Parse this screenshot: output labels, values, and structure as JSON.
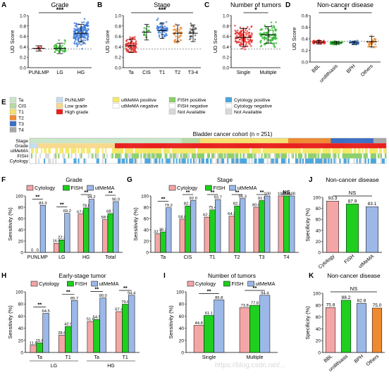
{
  "colors": {
    "cytology": "#f4a6a6",
    "fish": "#1fcf1f",
    "utmema": "#9bb8e8",
    "ta": "#c9e6c9",
    "cis": "#b8d9a0",
    "t1": "#f5e06e",
    "t2": "#f08a30",
    "t3": "#3a6fc6",
    "t4": "#a8a8a8",
    "punlmp": "#c6dcef",
    "lowgrade": "#f7d98c",
    "highgrade": "#e8201e",
    "pos_utmema": "#f5e96b",
    "pos_fish": "#8ccf6a",
    "pos_cyto": "#4aa6e0",
    "neg": "#ffffff",
    "na": "#d9d9d9"
  },
  "legend_top": {
    "cytology": "Cytology",
    "fish": "FISH",
    "utmema": "utMeMA"
  },
  "panels": {
    "A": {
      "letter": "A",
      "title": "Grade",
      "ylabel": "UD Score",
      "sig": "***",
      "categories": [
        "PUNLMP",
        "LG",
        "HG"
      ],
      "means": [
        0.37,
        0.37,
        0.66
      ],
      "ylim": [
        0,
        1.0
      ],
      "yticks": [
        "0.0",
        "0.2",
        "0.4",
        "0.6",
        "0.8",
        "1.0"
      ]
    },
    "B": {
      "letter": "B",
      "title": "Stage",
      "ylabel": "UD Score",
      "sig": "***",
      "categories": [
        "Ta",
        "CIS",
        "T1",
        "T2",
        "T3-4"
      ],
      "means": [
        0.42,
        0.68,
        0.71,
        0.66,
        0.66
      ],
      "ylim": [
        0,
        1.0
      ],
      "yticks": [
        "0.0",
        "0.2",
        "0.4",
        "0.6",
        "0.8",
        "1.0"
      ]
    },
    "C": {
      "letter": "C",
      "title": "Number of tumors",
      "ylabel": "UD Score",
      "sig": "*",
      "categories": [
        "Single",
        "Multiple"
      ],
      "means": [
        0.58,
        0.63
      ],
      "ylim": [
        0,
        1.0
      ],
      "yticks": [
        "0.0",
        "0.2",
        "0.4",
        "0.6",
        "0.8",
        "1.0"
      ]
    },
    "D": {
      "letter": "D",
      "title": "Non-cancer disease",
      "ylabel": "UD Score",
      "sig": "*",
      "categories": [
        "BBL",
        "urolithiasis",
        "BPH",
        "Others"
      ],
      "means": [
        0.34,
        0.33,
        0.33,
        0.35
      ],
      "ylim": [
        0,
        0.8
      ],
      "yticks": [
        "0.0",
        "0.2",
        "0.4",
        "0.6",
        "0.8"
      ]
    },
    "E": {
      "letter": "E",
      "cohort_title": "Bladder cancer cohort (n = 251)",
      "row_labels": [
        "Stage",
        "Grade",
        "utMeMA",
        "FISH",
        "Cytology"
      ],
      "legend_stage": [
        "Ta",
        "CIS",
        "T1",
        "T2",
        "T3",
        "T4"
      ],
      "legend_grade": [
        "PUNLMP",
        "Low grade",
        "High grade"
      ],
      "legend_utmema": [
        "utMeMA positive",
        "utMeMA negative"
      ],
      "legend_fish": [
        "FISH positive",
        "FISH negative",
        "Not Available"
      ],
      "legend_cyto": [
        "Cytology positive",
        "Cytology negative",
        "Not Available"
      ]
    },
    "F": {
      "letter": "F",
      "title": "Grade",
      "ylabel": "Sensitivity (%)",
      "ytickvals": [
        0,
        20,
        40,
        60,
        80,
        100
      ],
      "categories": [
        "PUNLMP",
        "LG",
        "HG",
        "Total"
      ],
      "series": [
        {
          "name": "Cytology",
          "values": [
            0,
            16.0,
            67.8,
            58.0
          ]
        },
        {
          "name": "FISH",
          "values": [
            0,
            22.2,
            78.8,
            68.7
          ]
        },
        {
          "name": "utMeMA",
          "values": [
            83.3,
            69.2,
            94.2,
            90.0
          ]
        }
      ],
      "labels": [
        [
          "0",
          "0",
          "83.3"
        ],
        [
          "16.0",
          "22.2",
          "69.2"
        ],
        [
          "67.8",
          "78.8",
          "94.2"
        ],
        [
          "58.0",
          "68.7",
          "90.0"
        ]
      ],
      "sig": [
        "**",
        "**",
        "**",
        "**"
      ]
    },
    "G": {
      "letter": "G",
      "title": "Stage",
      "ylabel": "Sensitivity (%)",
      "ytickvals": [
        0,
        20,
        40,
        60,
        80,
        100
      ],
      "categories": [
        "Ta",
        "CIS",
        "T1",
        "T2",
        "T3",
        "T4"
      ],
      "series": [
        {
          "name": "Cytology",
          "values": [
            32.7,
            58.8,
            62.3,
            64.2,
            80.0,
            100
          ]
        },
        {
          "name": "FISH",
          "values": [
            36.2,
            82.3,
            75.4,
            82.3,
            91.9,
            100
          ]
        },
        {
          "name": "utMeMA",
          "values": [
            79.2,
            92.0,
            93.7,
            95.3,
            100,
            100
          ]
        }
      ],
      "labels": [
        [
          "32.7",
          "36.2",
          "79.2"
        ],
        [
          "58.8",
          "82.3",
          "92.0"
        ],
        [
          "62.3",
          "75.4",
          "93.7"
        ],
        [
          "64.2",
          "82.3",
          "95.3"
        ],
        [
          "80.0",
          "91.9",
          "100"
        ],
        [
          "100",
          "100",
          "100"
        ]
      ],
      "sig": [
        "**",
        "**",
        "**",
        "**",
        "**",
        "NS"
      ]
    },
    "H": {
      "letter": "H",
      "title": "Early-stage tumor",
      "ylabel": "Sensitivity (%)",
      "ytickvals": [
        0,
        20,
        40,
        60,
        80,
        100
      ],
      "categories": [
        "Ta",
        "T1",
        "Ta",
        "T1"
      ],
      "groups": [
        "LG",
        "HG"
      ],
      "series": [
        {
          "name": "Cytology",
          "values": [
            11.8,
            28.6,
            51.0,
            67.4
          ]
        },
        {
          "name": "FISH",
          "values": [
            15.8,
            42.9,
            54.5,
            79.6
          ]
        },
        {
          "name": "utMeMA",
          "values": [
            64.5,
            85.7,
            90.0,
            94.4
          ]
        }
      ],
      "labels": [
        [
          "11.8",
          "15.8",
          "64.5"
        ],
        [
          "28.6",
          "42.9",
          "85.7"
        ],
        [
          "51.0",
          "54.5",
          "90.0"
        ],
        [
          "67.4",
          "79.6",
          "94.4"
        ]
      ],
      "sig": [
        "**",
        "**",
        "**",
        "**"
      ]
    },
    "I": {
      "letter": "I",
      "title": "Number of tumors",
      "ylabel": "Sensitivity (%)",
      "ytickvals": [
        0,
        20,
        40,
        60,
        80,
        100
      ],
      "categories": [
        "Single",
        "Multiple"
      ],
      "series": [
        {
          "name": "Cytology",
          "values": [
            44.8,
            73.8
          ]
        },
        {
          "name": "FISH",
          "values": [
            61.1,
            77.8
          ]
        },
        {
          "name": "utMeMA",
          "values": [
            86.8,
            94.4
          ]
        }
      ],
      "labels": [
        [
          "44.8",
          "61.1",
          "86.8"
        ],
        [
          "73.8",
          "77.8",
          "94.4"
        ]
      ],
      "sig": [
        "**",
        "**"
      ]
    },
    "J": {
      "letter": "J",
      "title": "Non-cancer disease",
      "ylabel": "Specificity (%)",
      "ytickvals": [
        0,
        20,
        40,
        60,
        80,
        100
      ],
      "categories": [
        "Cytology",
        "FISH",
        "utMeMA"
      ],
      "values": [
        93.3,
        87.9,
        83.1
      ],
      "labels": [
        "93.3",
        "87.9",
        "83.1"
      ],
      "sig": "NS"
    },
    "K": {
      "letter": "K",
      "title": "Non-cancer disease",
      "ylabel": "Specificity (%)",
      "ytickvals": [
        0,
        20,
        40,
        60,
        80,
        100
      ],
      "categories": [
        "BBL",
        "urolithiasis",
        "BPH",
        "Others"
      ],
      "values": [
        75.8,
        88.2,
        82.8,
        75.0
      ],
      "labels": [
        "75.8",
        "88.2",
        "82.8",
        "75.0"
      ],
      "sig": "NS"
    }
  },
  "watermark": "https://blog.csdn.net/...",
  "chart_data": [
    {
      "type": "scatter",
      "title": "Grade",
      "ylabel": "UD Score",
      "categories": [
        "PUNLMP",
        "LG",
        "HG"
      ],
      "means": [
        0.37,
        0.37,
        0.66
      ],
      "ylim": [
        0,
        1.0
      ]
    },
    {
      "type": "scatter",
      "title": "Stage",
      "ylabel": "UD Score",
      "categories": [
        "Ta",
        "CIS",
        "T1",
        "T2",
        "T3-4"
      ],
      "means": [
        0.42,
        0.68,
        0.71,
        0.66,
        0.66
      ],
      "ylim": [
        0,
        1.0
      ]
    },
    {
      "type": "scatter",
      "title": "Number of tumors",
      "ylabel": "UD Score",
      "categories": [
        "Single",
        "Multiple"
      ],
      "means": [
        0.58,
        0.63
      ],
      "ylim": [
        0,
        1.0
      ]
    },
    {
      "type": "scatter",
      "title": "Non-cancer disease",
      "ylabel": "UD Score",
      "categories": [
        "BBL",
        "urolithiasis",
        "BPH",
        "Others"
      ],
      "means": [
        0.34,
        0.33,
        0.33,
        0.35
      ],
      "ylim": [
        0,
        0.8
      ]
    },
    {
      "type": "bar",
      "title": "Grade",
      "ylabel": "Sensitivity (%)",
      "categories": [
        "PUNLMP",
        "LG",
        "HG",
        "Total"
      ],
      "series": [
        {
          "name": "Cytology",
          "values": [
            0,
            16.0,
            67.8,
            58.0
          ]
        },
        {
          "name": "FISH",
          "values": [
            0,
            22.2,
            78.8,
            68.7
          ]
        },
        {
          "name": "utMeMA",
          "values": [
            83.3,
            69.2,
            94.2,
            90.0
          ]
        }
      ],
      "ylim": [
        0,
        100
      ]
    },
    {
      "type": "bar",
      "title": "Stage",
      "ylabel": "Sensitivity (%)",
      "categories": [
        "Ta",
        "CIS",
        "T1",
        "T2",
        "T3",
        "T4"
      ],
      "series": [
        {
          "name": "Cytology",
          "values": [
            32.7,
            58.8,
            62.3,
            64.2,
            80.0,
            100
          ]
        },
        {
          "name": "FISH",
          "values": [
            36.2,
            82.3,
            75.4,
            82.3,
            91.9,
            100
          ]
        },
        {
          "name": "utMeMA",
          "values": [
            79.2,
            92.0,
            93.7,
            95.3,
            100,
            100
          ]
        }
      ],
      "ylim": [
        0,
        100
      ]
    },
    {
      "type": "bar",
      "title": "Early-stage tumor",
      "ylabel": "Sensitivity (%)",
      "categories": [
        "LG Ta",
        "LG T1",
        "HG Ta",
        "HG T1"
      ],
      "series": [
        {
          "name": "Cytology",
          "values": [
            11.8,
            28.6,
            51.0,
            67.4
          ]
        },
        {
          "name": "FISH",
          "values": [
            15.8,
            42.9,
            54.5,
            79.6
          ]
        },
        {
          "name": "utMeMA",
          "values": [
            64.5,
            85.7,
            90.0,
            94.4
          ]
        }
      ],
      "ylim": [
        0,
        100
      ]
    },
    {
      "type": "bar",
      "title": "Number of tumors",
      "ylabel": "Sensitivity (%)",
      "categories": [
        "Single",
        "Multiple"
      ],
      "series": [
        {
          "name": "Cytology",
          "values": [
            44.8,
            73.8
          ]
        },
        {
          "name": "FISH",
          "values": [
            61.1,
            77.8
          ]
        },
        {
          "name": "utMeMA",
          "values": [
            86.8,
            94.4
          ]
        }
      ],
      "ylim": [
        0,
        100
      ]
    },
    {
      "type": "bar",
      "title": "Non-cancer disease",
      "ylabel": "Specificity (%)",
      "categories": [
        "Cytology",
        "FISH",
        "utMeMA"
      ],
      "values": [
        93.3,
        87.9,
        83.1
      ],
      "ylim": [
        0,
        100
      ]
    },
    {
      "type": "bar",
      "title": "Non-cancer disease",
      "ylabel": "Specificity (%)",
      "categories": [
        "BBL",
        "urolithiasis",
        "BPH",
        "Others"
      ],
      "values": [
        75.8,
        88.2,
        82.8,
        75.0
      ],
      "ylim": [
        0,
        100
      ]
    }
  ]
}
